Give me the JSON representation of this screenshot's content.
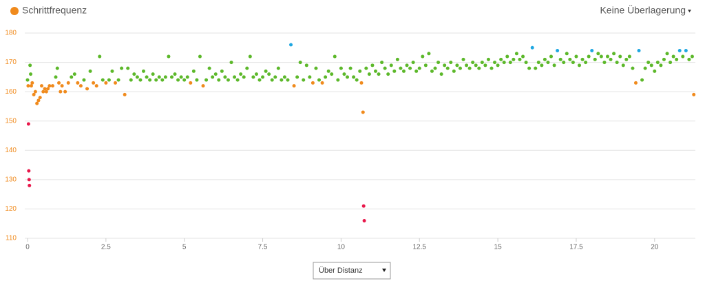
{
  "chart_data": {
    "type": "scatter",
    "legend": "Schrittfrequenz",
    "overlay_menu": "Keine Überlagerung",
    "x_selector": "Über Distanz",
    "series": [
      {
        "name": "Schrittfrequenz",
        "color": "#f08a1c",
        "zones": [
          {
            "below": 150,
            "color": "#e8174a"
          },
          {
            "below": 164,
            "color": "#f08a1c"
          },
          {
            "below": 174,
            "color": "#5cb82a"
          },
          {
            "color": "#1ea7e1"
          }
        ],
        "x": [
          0.0,
          0.02,
          0.03,
          0.04,
          0.05,
          0.06,
          0.08,
          0.1,
          0.12,
          0.15,
          0.2,
          0.25,
          0.3,
          0.35,
          0.4,
          0.45,
          0.5,
          0.55,
          0.6,
          0.65,
          0.7,
          0.8,
          0.9,
          0.95,
          1.0,
          1.05,
          1.1,
          1.2,
          1.3,
          1.4,
          1.5,
          1.6,
          1.7,
          1.8,
          1.9,
          2.0,
          2.1,
          2.2,
          2.3,
          2.4,
          2.5,
          2.6,
          2.7,
          2.8,
          2.9,
          3.0,
          3.1,
          3.2,
          3.3,
          3.4,
          3.5,
          3.6,
          3.7,
          3.8,
          3.9,
          4.0,
          4.1,
          4.2,
          4.3,
          4.4,
          4.5,
          4.6,
          4.7,
          4.8,
          4.9,
          5.0,
          5.1,
          5.2,
          5.3,
          5.4,
          5.5,
          5.6,
          5.7,
          5.8,
          5.9,
          6.0,
          6.1,
          6.2,
          6.3,
          6.4,
          6.5,
          6.6,
          6.7,
          6.8,
          6.9,
          7.0,
          7.1,
          7.2,
          7.3,
          7.4,
          7.5,
          7.6,
          7.7,
          7.8,
          7.9,
          8.0,
          8.1,
          8.2,
          8.3,
          8.4,
          8.5,
          8.6,
          8.7,
          8.8,
          8.9,
          9.0,
          9.1,
          9.2,
          9.3,
          9.4,
          9.5,
          9.6,
          9.7,
          9.8,
          9.9,
          10.0,
          10.1,
          10.2,
          10.3,
          10.4,
          10.5,
          10.6,
          10.65,
          10.7,
          10.72,
          10.74,
          10.8,
          10.9,
          11.0,
          11.1,
          11.2,
          11.3,
          11.4,
          11.5,
          11.6,
          11.7,
          11.8,
          11.9,
          12.0,
          12.1,
          12.2,
          12.3,
          12.4,
          12.5,
          12.6,
          12.7,
          12.8,
          12.9,
          13.0,
          13.1,
          13.2,
          13.3,
          13.4,
          13.5,
          13.6,
          13.7,
          13.8,
          13.9,
          14.0,
          14.1,
          14.2,
          14.3,
          14.4,
          14.5,
          14.6,
          14.7,
          14.8,
          14.9,
          15.0,
          15.1,
          15.2,
          15.3,
          15.4,
          15.5,
          15.6,
          15.7,
          15.8,
          15.9,
          16.0,
          16.1,
          16.2,
          16.3,
          16.4,
          16.5,
          16.6,
          16.7,
          16.8,
          16.9,
          17.0,
          17.1,
          17.2,
          17.3,
          17.4,
          17.5,
          17.6,
          17.7,
          17.8,
          17.9,
          18.0,
          18.1,
          18.2,
          18.3,
          18.4,
          18.5,
          18.6,
          18.7,
          18.8,
          18.9,
          19.0,
          19.1,
          19.2,
          19.3,
          19.4,
          19.5,
          19.6,
          19.7,
          19.8,
          19.9,
          20.0,
          20.1,
          20.2,
          20.3,
          20.4,
          20.5,
          20.6,
          20.7,
          20.8,
          20.9,
          21.0,
          21.1,
          21.2,
          21.25
        ],
        "values": [
          164,
          162,
          149,
          133,
          130,
          128,
          169,
          166,
          162,
          163,
          159,
          160,
          156,
          157,
          158,
          162,
          160,
          161,
          160,
          161,
          162,
          162,
          165,
          168,
          163,
          160,
          162,
          160,
          163,
          165,
          166,
          163,
          162,
          164,
          161,
          167,
          163,
          162,
          172,
          164,
          163,
          164,
          167,
          163,
          164,
          168,
          159,
          168,
          164,
          166,
          165,
          164,
          167,
          165,
          164,
          166,
          164,
          165,
          164,
          165,
          172,
          165,
          166,
          164,
          165,
          164,
          165,
          163,
          167,
          164,
          172,
          162,
          164,
          168,
          165,
          166,
          164,
          167,
          165,
          164,
          170,
          165,
          164,
          166,
          165,
          168,
          172,
          165,
          166,
          164,
          165,
          167,
          166,
          164,
          165,
          168,
          164,
          165,
          164,
          176,
          162,
          165,
          170,
          164,
          169,
          165,
          163,
          168,
          164,
          163,
          165,
          167,
          166,
          172,
          164,
          168,
          166,
          165,
          168,
          165,
          164,
          167,
          163,
          153,
          121,
          116,
          168,
          166,
          169,
          167,
          166,
          170,
          168,
          166,
          169,
          167,
          171,
          168,
          167,
          169,
          168,
          170,
          167,
          168,
          172,
          169,
          173,
          167,
          168,
          170,
          166,
          169,
          168,
          170,
          167,
          169,
          168,
          171,
          169,
          168,
          170,
          169,
          168,
          170,
          169,
          171,
          168,
          170,
          169,
          171,
          170,
          172,
          170,
          171,
          173,
          171,
          172,
          170,
          168,
          175,
          168,
          170,
          169,
          171,
          170,
          172,
          169,
          174,
          171,
          170,
          173,
          171,
          170,
          172,
          169,
          171,
          170,
          172,
          174,
          171,
          173,
          172,
          170,
          172,
          171,
          173,
          170,
          172,
          169,
          171,
          172,
          168,
          163,
          174,
          164,
          168,
          170,
          169,
          167,
          170,
          169,
          171,
          173,
          170,
          172,
          171,
          174,
          172,
          174,
          171,
          172,
          159
        ]
      }
    ],
    "xlim": [
      0,
      21.3
    ],
    "ylim": [
      110,
      180
    ],
    "xticks": [
      0,
      2.5,
      5,
      7.5,
      10,
      12.5,
      15,
      17.5,
      20
    ],
    "yticks": [
      110,
      120,
      130,
      140,
      150,
      160,
      170,
      180
    ],
    "grid": true
  }
}
